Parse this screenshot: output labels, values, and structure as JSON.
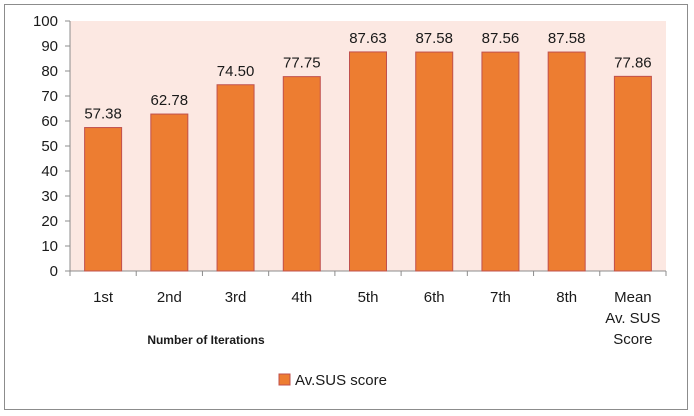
{
  "chart_data": {
    "type": "bar",
    "categories": [
      "1st",
      "2nd",
      "3rd",
      "4th",
      "5th",
      "6th",
      "7th",
      "8th",
      [
        "Mean",
        "Av. SUS",
        "Score"
      ]
    ],
    "series": [
      {
        "name": "Av.SUS score",
        "values": [
          57.38,
          62.78,
          74.5,
          77.75,
          87.63,
          87.58,
          87.56,
          87.58,
          77.86
        ],
        "data_labels": [
          "57.38",
          "62.78",
          "74.50",
          "77.75",
          "87.63",
          "87.58",
          "87.56",
          "87.58",
          "77.86"
        ],
        "color": "#ED7D31"
      }
    ],
    "title": "",
    "xlabel": "Number of Iterations",
    "ylabel": "",
    "ylim": [
      0,
      100
    ],
    "yticks": [
      "0",
      "10",
      "20",
      "30",
      "40",
      "50",
      "60",
      "70",
      "80",
      "90",
      "100"
    ],
    "grid": false,
    "plot_background": "#FCE8E2",
    "bar_border_color": "#C0504D",
    "legend": {
      "position": "bottom"
    }
  }
}
